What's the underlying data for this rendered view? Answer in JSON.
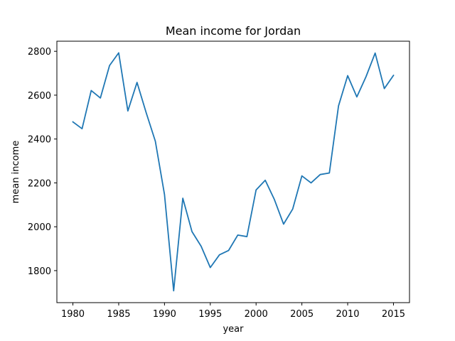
{
  "chart_data": {
    "type": "line",
    "title": "Mean income for Jordan",
    "xlabel": "year",
    "ylabel": "mean income",
    "xlim": [
      1978.25,
      2016.75
    ],
    "ylim": [
      1654,
      2846
    ],
    "x_ticks": [
      1980,
      1985,
      1990,
      1995,
      2000,
      2005,
      2010,
      2015
    ],
    "y_ticks": [
      1800,
      2000,
      2200,
      2400,
      2600,
      2800
    ],
    "grid": false,
    "line_color": "#1f77b4",
    "series": [
      {
        "x": [
          1980,
          1981,
          1982,
          1983,
          1984,
          1985,
          1986,
          1987,
          1988,
          1989,
          1990,
          1991,
          1992,
          1993,
          1994,
          1995,
          1996,
          1997,
          1998,
          1999,
          2000,
          2001,
          2002,
          2003,
          2004,
          2005,
          2006,
          2007,
          2008,
          2009,
          2010,
          2011,
          2012,
          2013,
          2014,
          2015
        ],
        "y": [
          2478,
          2447,
          2621,
          2587,
          2735,
          2793,
          2528,
          2658,
          2520,
          2390,
          2147,
          1708,
          2130,
          1978,
          1911,
          1814,
          1872,
          1892,
          1962,
          1955,
          2168,
          2212,
          2124,
          2012,
          2081,
          2232,
          2200,
          2238,
          2245,
          2551,
          2689,
          2592,
          2684,
          2792,
          2630,
          2690
        ]
      }
    ]
  }
}
